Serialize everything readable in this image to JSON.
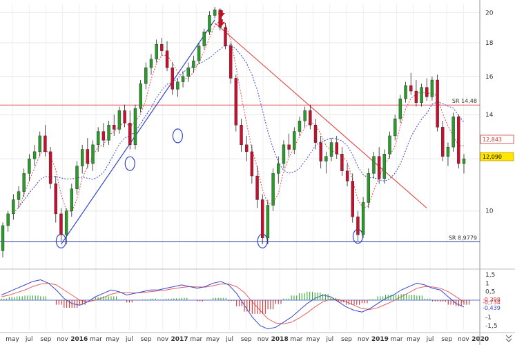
{
  "chart_data": [
    {
      "type": "candlestick",
      "panel": "price",
      "y_ticks": [
        10,
        12,
        14,
        16,
        18,
        20
      ],
      "ylim": [
        8.2,
        20.6
      ],
      "scale": "log",
      "colors": {
        "up": "#2a9a2a",
        "down": "#c8102e",
        "wick": "#222222",
        "ma": "#3344cc",
        "ma_fast": "#e05050",
        "trend_up": "#3344cc",
        "trend_down": "#e05050",
        "sr_upper": "#e05050",
        "sr_lower": "#223399"
      },
      "candles": [
        [
          0.0,
          8.7,
          9.6,
          8.5,
          9.5
        ],
        [
          0.5,
          9.5,
          10.0,
          9.3,
          9.9
        ],
        [
          1.0,
          9.9,
          10.6,
          9.7,
          10.4
        ],
        [
          1.5,
          10.4,
          10.9,
          10.1,
          10.7
        ],
        [
          2.0,
          10.7,
          11.6,
          10.5,
          11.4
        ],
        [
          2.5,
          11.4,
          12.2,
          11.1,
          12.0
        ],
        [
          3.0,
          12.0,
          12.6,
          11.7,
          12.3
        ],
        [
          3.5,
          12.3,
          13.2,
          12.1,
          13.0
        ],
        [
          4.0,
          13.0,
          13.5,
          12.1,
          12.3
        ],
        [
          4.5,
          12.3,
          12.5,
          10.8,
          11.0
        ],
        [
          5.0,
          11.0,
          11.3,
          9.6,
          9.9
        ],
        [
          5.5,
          9.9,
          10.1,
          9.0,
          9.2
        ],
        [
          6.0,
          9.2,
          10.1,
          8.9,
          10.0
        ],
        [
          6.5,
          10.0,
          11.0,
          9.8,
          10.8
        ],
        [
          7.0,
          10.8,
          11.9,
          10.6,
          11.7
        ],
        [
          7.5,
          11.7,
          12.6,
          11.4,
          12.4
        ],
        [
          8.0,
          12.4,
          12.9,
          11.6,
          11.8
        ],
        [
          8.5,
          11.8,
          12.8,
          11.5,
          12.6
        ],
        [
          9.0,
          12.6,
          13.4,
          12.3,
          13.2
        ],
        [
          9.5,
          13.2,
          13.6,
          12.5,
          12.8
        ],
        [
          10.0,
          12.8,
          13.7,
          12.6,
          13.5
        ],
        [
          10.5,
          13.5,
          14.0,
          13.0,
          13.3
        ],
        [
          11.0,
          13.3,
          14.4,
          13.1,
          14.2
        ],
        [
          11.5,
          14.2,
          14.5,
          13.4,
          13.6
        ],
        [
          12.0,
          13.6,
          14.2,
          12.4,
          12.6
        ],
        [
          12.5,
          12.6,
          14.5,
          12.4,
          14.3
        ],
        [
          13.0,
          14.3,
          15.8,
          14.1,
          15.6
        ],
        [
          13.5,
          15.6,
          16.8,
          15.3,
          16.5
        ],
        [
          14.0,
          16.5,
          17.3,
          16.1,
          17.0
        ],
        [
          14.5,
          17.0,
          18.2,
          16.8,
          17.9
        ],
        [
          15.0,
          17.9,
          18.3,
          17.2,
          17.5
        ],
        [
          15.5,
          17.5,
          18.1,
          16.3,
          16.5
        ],
        [
          16.0,
          16.5,
          16.8,
          15.0,
          15.3
        ],
        [
          16.5,
          15.3,
          15.9,
          14.9,
          15.7
        ],
        [
          17.0,
          15.7,
          16.3,
          15.4,
          16.0
        ],
        [
          17.5,
          16.0,
          16.8,
          15.7,
          16.5
        ],
        [
          18.0,
          16.5,
          17.2,
          16.2,
          16.9
        ],
        [
          18.5,
          16.9,
          18.0,
          16.7,
          17.8
        ],
        [
          19.0,
          17.8,
          18.9,
          17.6,
          18.7
        ],
        [
          19.5,
          18.7,
          20.1,
          18.5,
          19.8
        ],
        [
          20.0,
          19.8,
          20.4,
          19.6,
          20.2
        ],
        [
          20.5,
          20.2,
          20.3,
          18.8,
          19.0
        ],
        [
          21.0,
          19.0,
          19.3,
          17.6,
          17.8
        ],
        [
          21.5,
          17.8,
          18.0,
          15.6,
          15.9
        ],
        [
          22.0,
          15.9,
          16.1,
          13.2,
          13.5
        ],
        [
          22.5,
          13.5,
          13.8,
          12.3,
          12.6
        ],
        [
          23.0,
          12.6,
          13.0,
          11.9,
          12.3
        ],
        [
          23.5,
          12.3,
          12.6,
          11.0,
          11.3
        ],
        [
          24.0,
          11.3,
          11.7,
          10.1,
          10.4
        ],
        [
          24.5,
          10.4,
          10.6,
          8.9,
          9.1
        ],
        [
          25.0,
          9.1,
          10.4,
          8.9,
          10.2
        ],
        [
          25.5,
          10.2,
          11.6,
          10.0,
          11.4
        ],
        [
          26.0,
          11.4,
          12.1,
          11.0,
          11.8
        ],
        [
          26.5,
          11.8,
          12.8,
          11.6,
          12.6
        ],
        [
          27.0,
          12.6,
          13.1,
          12.1,
          12.4
        ],
        [
          27.5,
          12.4,
          13.4,
          12.2,
          13.2
        ],
        [
          28.0,
          13.2,
          13.9,
          13.0,
          13.7
        ],
        [
          28.5,
          13.7,
          14.4,
          13.4,
          14.2
        ],
        [
          29.0,
          14.2,
          14.5,
          13.3,
          13.5
        ],
        [
          29.5,
          13.5,
          13.8,
          12.4,
          12.7
        ],
        [
          30.0,
          12.7,
          13.0,
          11.6,
          11.9
        ],
        [
          30.5,
          11.9,
          12.3,
          11.4,
          12.1
        ],
        [
          31.0,
          12.1,
          12.9,
          11.9,
          12.7
        ],
        [
          31.5,
          12.7,
          13.0,
          12.0,
          12.2
        ],
        [
          32.0,
          12.2,
          12.5,
          11.3,
          11.5
        ],
        [
          32.5,
          11.5,
          11.8,
          10.9,
          11.1
        ],
        [
          33.0,
          11.1,
          11.4,
          9.6,
          9.8
        ],
        [
          33.5,
          9.8,
          10.0,
          9.0,
          9.2
        ],
        [
          34.0,
          9.2,
          10.5,
          9.1,
          10.3
        ],
        [
          34.5,
          10.3,
          11.6,
          10.1,
          11.4
        ],
        [
          35.0,
          11.4,
          12.3,
          11.2,
          12.1
        ],
        [
          35.5,
          12.1,
          12.5,
          11.0,
          11.2
        ],
        [
          36.0,
          11.2,
          12.4,
          11.0,
          12.2
        ],
        [
          36.5,
          12.2,
          13.2,
          12.0,
          13.0
        ],
        [
          37.0,
          13.0,
          14.0,
          12.8,
          13.8
        ],
        [
          37.5,
          13.8,
          15.0,
          13.6,
          14.8
        ],
        [
          38.0,
          14.8,
          15.7,
          14.6,
          15.5
        ],
        [
          38.5,
          15.5,
          16.2,
          15.0,
          15.2
        ],
        [
          39.0,
          15.2,
          15.8,
          14.4,
          14.6
        ],
        [
          39.5,
          14.6,
          15.6,
          14.4,
          15.4
        ],
        [
          40.0,
          15.4,
          15.9,
          14.7,
          14.9
        ],
        [
          40.5,
          14.9,
          16.0,
          14.7,
          15.8
        ],
        [
          41.0,
          15.8,
          16.1,
          13.2,
          13.4
        ],
        [
          41.5,
          13.4,
          13.7,
          11.9,
          12.1
        ],
        [
          42.0,
          12.1,
          12.7,
          11.7,
          12.5
        ],
        [
          42.5,
          12.5,
          14.1,
          12.3,
          13.9
        ],
        [
          43.0,
          13.9,
          14.0,
          11.6,
          11.8
        ],
        [
          43.5,
          11.8,
          12.2,
          11.4,
          12.0
        ]
      ],
      "annotations": [
        {
          "kind": "hline",
          "y": 14.48,
          "label": "SR 14,48"
        },
        {
          "kind": "hline",
          "y": 8.9779,
          "label": "SR 8,9779"
        },
        {
          "kind": "price_tag",
          "y": 12.843,
          "label": "12,843"
        },
        {
          "kind": "price_tag",
          "y": 12.09,
          "label": "12,090"
        }
      ],
      "markers": [
        "down-arrow",
        "down-arrow"
      ]
    },
    {
      "type": "area",
      "panel": "macd",
      "y_ticks": [
        {
          "v": 1.5,
          "label": "1,5"
        },
        {
          "v": 1,
          "label": "1"
        },
        {
          "v": 0.5,
          "label": "0,5"
        },
        {
          "v": -1,
          "label": "-1"
        },
        {
          "v": -1.5,
          "label": "-1,5"
        }
      ],
      "ylim": [
        -1.75,
        1.75
      ],
      "tags": [
        {
          "label": "-0,398",
          "color": "#cc3333"
        },
        {
          "label": "-0,734",
          "color": "#cc3333"
        },
        {
          "label": "-0,439",
          "color": "#3344cc"
        }
      ],
      "colors": {
        "macd": "#3344cc",
        "signal": "#e06060",
        "hist_pos": "#33aa33",
        "hist_neg": "#cc3333"
      },
      "macd": [
        0.3,
        0.5,
        0.7,
        0.9,
        1.1,
        1.2,
        1.0,
        0.6,
        0.1,
        -0.2,
        -0.3,
        -0.1,
        0.2,
        0.4,
        0.6,
        0.5,
        0.3,
        0.4,
        0.5,
        0.6,
        0.6,
        0.7,
        0.8,
        0.9,
        0.8,
        0.7,
        0.8,
        1.0,
        1.1,
        0.9,
        0.4,
        -0.3,
        -1.0,
        -1.5,
        -1.7,
        -1.6,
        -1.3,
        -1.0,
        -0.6,
        -0.2,
        0.1,
        0.3,
        0.2,
        -0.1,
        -0.4,
        -0.6,
        -0.7,
        -0.5,
        -0.2,
        0.1,
        0.3,
        0.6,
        0.8,
        1.0,
        0.9,
        0.7,
        0.6,
        0.2,
        -0.2,
        -0.4
      ],
      "signal": [
        0.2,
        0.3,
        0.45,
        0.6,
        0.8,
        0.95,
        1.0,
        0.9,
        0.6,
        0.3,
        0.0,
        -0.1,
        0.0,
        0.15,
        0.35,
        0.45,
        0.45,
        0.42,
        0.45,
        0.5,
        0.55,
        0.6,
        0.68,
        0.75,
        0.8,
        0.78,
        0.77,
        0.85,
        0.95,
        0.95,
        0.8,
        0.45,
        -0.1,
        -0.6,
        -1.1,
        -1.35,
        -1.4,
        -1.3,
        -1.05,
        -0.75,
        -0.4,
        -0.1,
        0.05,
        0.05,
        -0.1,
        -0.3,
        -0.5,
        -0.55,
        -0.45,
        -0.25,
        -0.05,
        0.2,
        0.45,
        0.7,
        0.8,
        0.78,
        0.7,
        0.5,
        0.2,
        -0.1
      ]
    }
  ],
  "x_axis": {
    "labels": [
      "may",
      "jul",
      "sep",
      "nov",
      "2016",
      "mar",
      "may",
      "jul",
      "sep",
      "nov",
      "2017",
      "mar",
      "may",
      "jul",
      "sep",
      "nov",
      "2018",
      "mar",
      "may",
      "jul",
      "sep",
      "nov",
      "2019",
      "mar",
      "may",
      "jul",
      "sep",
      "nov",
      "2020"
    ],
    "years": [
      "2016",
      "2017",
      "2018",
      "2019",
      "2020"
    ]
  }
}
